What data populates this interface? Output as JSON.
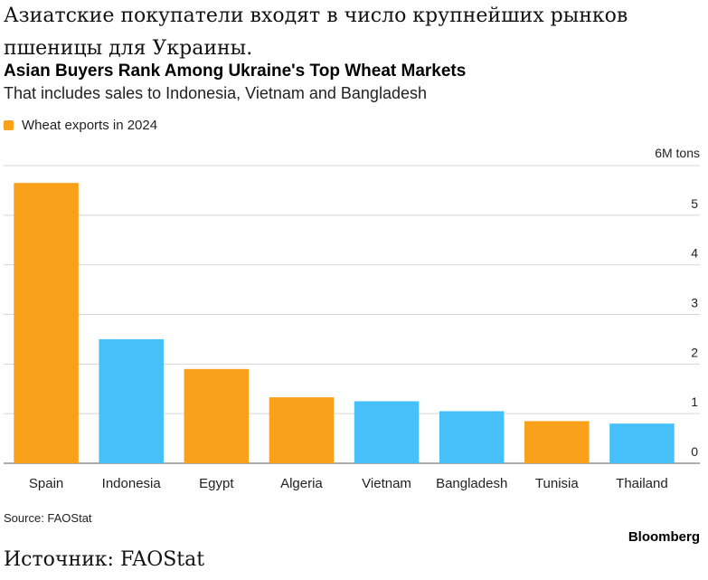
{
  "article": {
    "heading_ru": "Азиатские покупатели входят в число крупнейших рынков пшеницы для Украины.",
    "source_ru": "Источник: FAOStat"
  },
  "chart_data": {
    "type": "bar",
    "title": "Asian Buyers Rank Among Ukraine's Top Wheat Markets",
    "subtitle": "That includes sales to Indonesia, Vietnam and Bangladesh",
    "legend": [
      "Wheat exports in 2024"
    ],
    "legend_placement": "top-left",
    "unit_label": "6M tons",
    "categories": [
      "Spain",
      "Indonesia",
      "Egypt",
      "Algeria",
      "Vietnam",
      "Bangladesh",
      "Tunisia",
      "Thailand"
    ],
    "series": [
      {
        "name": "Wheat exports in 2024",
        "values": [
          5.65,
          2.5,
          1.9,
          1.33,
          1.25,
          1.05,
          0.85,
          0.8
        ]
      }
    ],
    "bar_colors": [
      "#f9a11b",
      "#47bff8",
      "#f9a11b",
      "#f9a11b",
      "#47bff8",
      "#47bff8",
      "#f9a11b",
      "#47bff8"
    ],
    "yticks": [
      "0",
      "1",
      "2",
      "3",
      "4",
      "5"
    ],
    "ylim": [
      0,
      6
    ],
    "y_axis_position": "right",
    "grid": true,
    "source": "Source: FAOStat",
    "brand": "Bloomberg"
  },
  "colors": {
    "orange": "#f9a11b",
    "blue": "#47bff8",
    "gridline": "#d6d6d6",
    "baseline": "#7a7a7a"
  }
}
